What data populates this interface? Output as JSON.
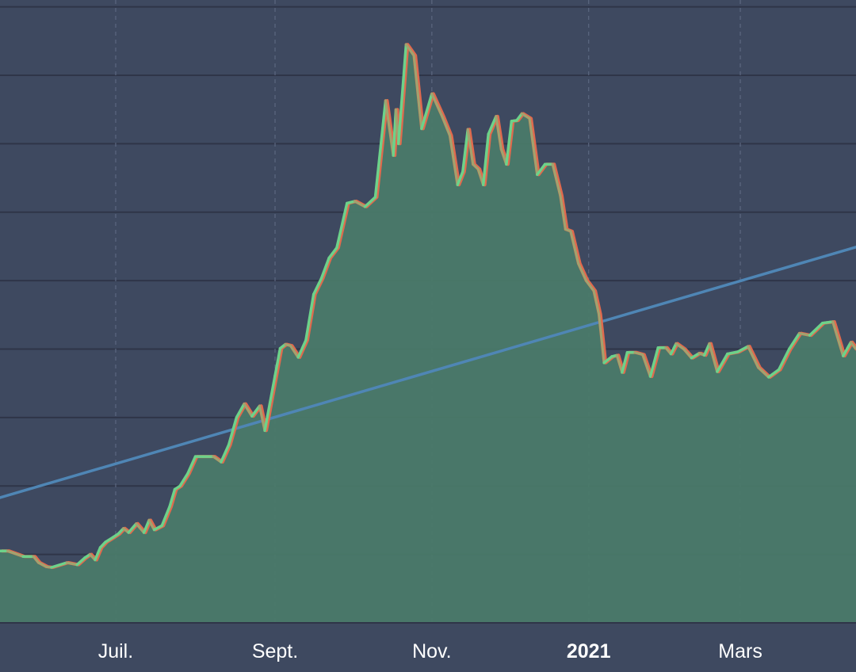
{
  "chart_data": {
    "type": "area",
    "title": "",
    "xlabel": "",
    "ylabel": "",
    "x_tick_labels": [
      {
        "label": "Juil.",
        "date": "2020-07-01",
        "bold": false
      },
      {
        "label": "Sept.",
        "date": "2020-09-01",
        "bold": false
      },
      {
        "label": "Nov.",
        "date": "2020-11-01",
        "bold": false
      },
      {
        "label": "2021",
        "date": "2021-01-01",
        "bold": true
      },
      {
        "label": "Mars",
        "date": "2021-03-01",
        "bold": false
      }
    ],
    "xlim": [
      "2020-05-17",
      "2021-04-15"
    ],
    "ylim": [
      0,
      9.1
    ],
    "y_gridlines": [
      1,
      2,
      3,
      4,
      5,
      6,
      7,
      8,
      9
    ],
    "grid": true,
    "colors": {
      "background": "#3e4960",
      "area_fill": "#4a7a69",
      "line_up": "#6dd28a",
      "line_down": "#e06a4e",
      "trend": "#4f86b5",
      "grid": "#2f3548",
      "vgrid": "#5c6780",
      "axis_text": "#ffffff"
    },
    "series": [
      {
        "type": "area",
        "x": [
          "2020-05-17",
          "2020-05-20",
          "2020-05-26",
          "2020-05-30",
          "2020-06-01",
          "2020-06-04",
          "2020-06-06",
          "2020-06-12",
          "2020-06-16",
          "2020-06-19",
          "2020-06-21",
          "2020-06-23",
          "2020-06-25",
          "2020-06-27",
          "2020-06-30",
          "2020-07-02",
          "2020-07-04",
          "2020-07-06",
          "2020-07-09",
          "2020-07-12",
          "2020-07-14",
          "2020-07-16",
          "2020-07-19",
          "2020-07-22",
          "2020-07-24",
          "2020-07-26",
          "2020-07-29",
          "2020-08-01",
          "2020-08-04",
          "2020-08-08",
          "2020-08-11",
          "2020-08-14",
          "2020-08-17",
          "2020-08-20",
          "2020-08-23",
          "2020-08-26",
          "2020-08-28",
          "2020-09-01",
          "2020-09-03",
          "2020-09-05",
          "2020-09-07",
          "2020-09-10",
          "2020-09-13",
          "2020-09-16",
          "2020-09-19",
          "2020-09-22",
          "2020-09-25",
          "2020-09-29",
          "2020-10-02",
          "2020-10-06",
          "2020-10-10",
          "2020-10-14",
          "2020-10-17",
          "2020-10-18",
          "2020-10-19",
          "2020-10-22",
          "2020-10-25",
          "2020-10-28",
          "2020-11-01",
          "2020-11-05",
          "2020-11-08",
          "2020-11-11",
          "2020-11-13",
          "2020-11-15",
          "2020-11-17",
          "2020-11-19",
          "2020-11-21",
          "2020-11-23",
          "2020-11-26",
          "2020-11-28",
          "2020-11-30",
          "2020-12-02",
          "2020-12-04",
          "2020-12-06",
          "2020-12-09",
          "2020-12-12",
          "2020-12-15",
          "2020-12-18",
          "2020-12-21",
          "2020-12-23",
          "2020-12-25",
          "2020-12-28",
          "2020-12-31",
          "2021-01-03",
          "2021-01-05",
          "2021-01-07",
          "2021-01-10",
          "2021-01-12",
          "2021-01-14",
          "2021-01-16",
          "2021-01-19",
          "2021-01-22",
          "2021-01-25",
          "2021-01-28",
          "2021-01-31",
          "2021-02-02",
          "2021-02-04",
          "2021-02-07",
          "2021-02-10",
          "2021-02-13",
          "2021-02-15",
          "2021-02-17",
          "2021-02-20",
          "2021-02-24",
          "2021-02-28",
          "2021-03-04",
          "2021-03-08",
          "2021-03-12",
          "2021-03-16",
          "2021-03-20",
          "2021-03-24",
          "2021-03-28",
          "2021-04-02",
          "2021-04-06",
          "2021-04-10",
          "2021-04-13",
          "2021-04-15"
        ],
        "y": [
          1.05,
          1.05,
          0.97,
          0.97,
          0.88,
          0.82,
          0.81,
          0.88,
          0.85,
          0.95,
          1.0,
          0.92,
          1.1,
          1.18,
          1.25,
          1.3,
          1.38,
          1.32,
          1.45,
          1.32,
          1.5,
          1.36,
          1.42,
          1.7,
          1.95,
          2.0,
          2.18,
          2.43,
          2.43,
          2.43,
          2.35,
          2.6,
          3.0,
          3.2,
          3.02,
          3.17,
          2.81,
          3.61,
          4.01,
          4.07,
          4.05,
          3.88,
          4.13,
          4.8,
          5.03,
          5.33,
          5.48,
          6.13,
          6.16,
          6.08,
          6.22,
          7.63,
          6.83,
          7.5,
          7.0,
          8.45,
          8.29,
          7.22,
          7.73,
          7.4,
          7.12,
          6.4,
          6.59,
          7.21,
          6.7,
          6.63,
          6.4,
          7.14,
          7.4,
          6.92,
          6.7,
          7.33,
          7.34,
          7.44,
          7.37,
          6.55,
          6.7,
          6.7,
          6.24,
          5.75,
          5.72,
          5.25,
          5.0,
          4.85,
          4.51,
          3.8,
          3.89,
          3.91,
          3.66,
          3.95,
          3.95,
          3.92,
          3.6,
          4.02,
          4.02,
          3.93,
          4.08,
          4.0,
          3.87,
          3.94,
          3.91,
          4.08,
          3.67,
          3.93,
          3.96,
          4.04,
          3.73,
          3.59,
          3.7,
          4.0,
          4.23,
          4.2,
          4.38,
          4.4,
          3.9,
          4.1,
          4.0
        ]
      },
      {
        "type": "trend",
        "x": [
          "2020-05-17",
          "2021-04-15"
        ],
        "y": [
          1.83,
          5.49
        ]
      }
    ]
  }
}
